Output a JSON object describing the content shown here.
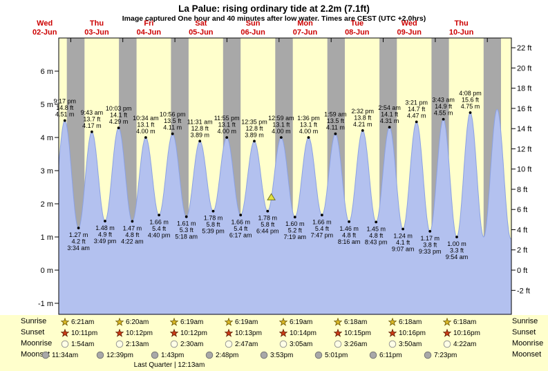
{
  "header": {
    "title": "La Palue: rising  ordinary tide at 2.2m (7.1ft)",
    "subtitle": "Image captured One hour and 40 minutes after low water. Times are CEST (UTC +2.0hrs)"
  },
  "colors": {
    "plot_bg": "#ffffcc",
    "night_band": "#a8a8a8",
    "tide_fill": "#b3c1ef",
    "tide_stroke": "#8ba1e3",
    "day_label_red": "#cc0000",
    "axis_text": "#000000",
    "sunrise_star": "#d9b826",
    "sunrise_star_stroke": "#6b5500",
    "sunset_star": "#cc3b16",
    "sunset_star_stroke": "#5e1a00",
    "moonrise_fill": "#ffffe6",
    "moonrise_stroke": "#8a8a8a",
    "moonset_fill": "#a8a8a8",
    "moonset_stroke": "#6e6e6e",
    "marker_fill": "#e3e23c",
    "marker_stroke": "#6f6f28"
  },
  "chart_data": {
    "type": "area",
    "title": "La Palue: rising ordinary tide at 2.2m (7.1ft)",
    "x_unit": "hours since 02-Jun 00:00 (CEST)",
    "x_range_hours": [
      18.5,
      227
    ],
    "y_range_m": [
      -1.33,
      7.0
    ],
    "grid": false,
    "x_days": [
      {
        "dow": "Wed",
        "date": "02-Jun"
      },
      {
        "dow": "Thu",
        "date": "03-Jun"
      },
      {
        "dow": "Fri",
        "date": "04-Jun"
      },
      {
        "dow": "Sat",
        "date": "05-Jun"
      },
      {
        "dow": "Sun",
        "date": "06-Jun"
      },
      {
        "dow": "Mon",
        "date": "07-Jun"
      },
      {
        "dow": "Tue",
        "date": "08-Jun"
      },
      {
        "dow": "Wed",
        "date": "09-Jun"
      },
      {
        "dow": "Thu",
        "date": "10-Jun"
      }
    ],
    "y_left": [
      {
        "value": 6,
        "label": "6 m"
      },
      {
        "value": 5,
        "label": "5 m"
      },
      {
        "value": 4,
        "label": "4 m"
      },
      {
        "value": 3,
        "label": "3 m"
      },
      {
        "value": 2,
        "label": "2 m"
      },
      {
        "value": 1,
        "label": "1 m"
      },
      {
        "value": 0,
        "label": "0 m"
      },
      {
        "value": -1,
        "label": "-1 m"
      }
    ],
    "y_right": [
      {
        "value": 22,
        "label": "22 ft"
      },
      {
        "value": 20,
        "label": "20 ft"
      },
      {
        "value": 18,
        "label": "18 ft"
      },
      {
        "value": 16,
        "label": "16 ft"
      },
      {
        "value": 14,
        "label": "14 ft"
      },
      {
        "value": 12,
        "label": "12 ft"
      },
      {
        "value": 10,
        "label": "10 ft"
      },
      {
        "value": 8,
        "label": "8 ft"
      },
      {
        "value": 6,
        "label": "6 ft"
      },
      {
        "value": 4,
        "label": "4 ft"
      },
      {
        "value": 2,
        "label": "2 ft"
      },
      {
        "value": 0,
        "label": "0 ft"
      },
      {
        "value": -2,
        "label": "-2 ft"
      }
    ],
    "day_tick_hours": [
      24,
      48,
      72,
      96,
      120,
      144,
      168,
      192,
      216
    ],
    "night_bands_hours": [
      [
        22.183,
        30.35
      ],
      [
        46.2,
        54.333
      ],
      [
        70.2,
        78.317
      ],
      [
        94.217,
        102.317
      ],
      [
        118.233,
        126.317
      ],
      [
        142.25,
        150.3
      ],
      [
        166.267,
        174.3
      ],
      [
        190.267,
        198.3
      ],
      [
        214.267,
        222.3
      ]
    ],
    "tide_events": [
      {
        "t": 21.283,
        "m": 4.51,
        "kind": "high",
        "labels": [
          "9:17 pm",
          "14.8 ft",
          "4.51 m"
        ]
      },
      {
        "t": 27.567,
        "m": 1.27,
        "kind": "low",
        "labels": [
          "1.27 m",
          "4.2 ft",
          "3:34 am"
        ]
      },
      {
        "t": 33.717,
        "m": 4.17,
        "kind": "high",
        "labels": [
          "9:43 am",
          "13.7 ft",
          "4.17 m"
        ]
      },
      {
        "t": 39.817,
        "m": 1.48,
        "kind": "low",
        "labels": [
          "1.48 m",
          "4.9 ft",
          "3:49 pm"
        ]
      },
      {
        "t": 46.05,
        "m": 4.29,
        "kind": "high",
        "labels": [
          "10:03 pm",
          "14.1 ft",
          "4.29 m"
        ]
      },
      {
        "t": 52.367,
        "m": 1.47,
        "kind": "low",
        "labels": [
          "1.47 m",
          "4.8 ft",
          "4:22 am"
        ]
      },
      {
        "t": 58.567,
        "m": 4.0,
        "kind": "high",
        "labels": [
          "10:34 am",
          "13.1 ft",
          "4.00 m"
        ]
      },
      {
        "t": 64.667,
        "m": 1.66,
        "kind": "low",
        "labels": [
          "1.66 m",
          "5.4 ft",
          "4:40 pm"
        ]
      },
      {
        "t": 70.933,
        "m": 4.11,
        "kind": "high",
        "labels": [
          "10:56 pm",
          "13.5 ft",
          "4.11 m"
        ]
      },
      {
        "t": 77.3,
        "m": 1.61,
        "kind": "low",
        "labels": [
          "1.61 m",
          "5.3 ft",
          "5:18 am"
        ]
      },
      {
        "t": 83.517,
        "m": 3.89,
        "kind": "high",
        "labels": [
          "11:31 am",
          "12.8 ft",
          "3.89 m"
        ]
      },
      {
        "t": 89.65,
        "m": 1.78,
        "kind": "low",
        "labels": [
          "1.78 m",
          "5.8 ft",
          "5:39 pm"
        ]
      },
      {
        "t": 95.917,
        "m": 4.0,
        "kind": "high",
        "labels": [
          "11:55 pm",
          "13.1 ft",
          "4.00 m"
        ]
      },
      {
        "t": 102.283,
        "m": 1.66,
        "kind": "low",
        "labels": [
          "1.66 m",
          "5.4 ft",
          "6:17 am"
        ]
      },
      {
        "t": 108.583,
        "m": 3.89,
        "kind": "high",
        "labels": [
          "12:35 pm",
          "12.8 ft",
          "3.89 m"
        ]
      },
      {
        "t": 114.733,
        "m": 1.78,
        "kind": "low",
        "labels": [
          "1.78 m",
          "5.8 ft",
          "6:44 pm"
        ]
      },
      {
        "t": 120.983,
        "m": 4.0,
        "kind": "high",
        "labels": [
          "12:59 am",
          "13.1 ft",
          "4.00 m"
        ]
      },
      {
        "t": 127.317,
        "m": 1.6,
        "kind": "low",
        "labels": [
          "1.60 m",
          "5.2 ft",
          "7:19 am"
        ]
      },
      {
        "t": 133.6,
        "m": 4.0,
        "kind": "high",
        "labels": [
          "1:36 pm",
          "13.1 ft",
          "4.00 m"
        ]
      },
      {
        "t": 139.783,
        "m": 1.66,
        "kind": "low",
        "labels": [
          "1.66 m",
          "5.4 ft",
          "7:47 pm"
        ]
      },
      {
        "t": 145.983,
        "m": 4.11,
        "kind": "high",
        "labels": [
          "1:59 am",
          "13.5 ft",
          "4.11 m"
        ]
      },
      {
        "t": 152.267,
        "m": 1.46,
        "kind": "low",
        "labels": [
          "1.46 m",
          "4.8 ft",
          "8:16 am"
        ]
      },
      {
        "t": 158.533,
        "m": 4.21,
        "kind": "high",
        "labels": [
          "2:32 pm",
          "13.8 ft",
          "4.21 m"
        ]
      },
      {
        "t": 164.717,
        "m": 1.45,
        "kind": "low",
        "labels": [
          "1.45 m",
          "4.8 ft",
          "8:43 pm"
        ]
      },
      {
        "t": 170.9,
        "m": 4.31,
        "kind": "high",
        "labels": [
          "2:54 am",
          "14.1 ft",
          "4.31 m"
        ]
      },
      {
        "t": 177.117,
        "m": 1.24,
        "kind": "low",
        "labels": [
          "1.24 m",
          "4.1 ft",
          "9:07 am"
        ]
      },
      {
        "t": 183.35,
        "m": 4.47,
        "kind": "high",
        "labels": [
          "3:21 pm",
          "14.7 ft",
          "4.47 m"
        ]
      },
      {
        "t": 189.55,
        "m": 1.17,
        "kind": "low",
        "labels": [
          "1.17 m",
          "3.8 ft",
          "9:33 pm"
        ]
      },
      {
        "t": 195.717,
        "m": 4.55,
        "kind": "high",
        "labels": [
          "3:43 am",
          "14.9 ft",
          "4.55 m"
        ]
      },
      {
        "t": 201.9,
        "m": 1.0,
        "kind": "low",
        "labels": [
          "1.00 m",
          "3.3 ft",
          "9:54 am"
        ]
      },
      {
        "t": 208.133,
        "m": 4.75,
        "kind": "high",
        "labels": [
          "4:08 pm",
          "15.6 ft",
          "4.75 m"
        ]
      }
    ],
    "synthetic_extremes": [
      [
        15.2,
        1.4
      ],
      [
        214.3,
        1.0
      ],
      [
        220.5,
        4.85
      ],
      [
        226.8,
        0.95
      ]
    ],
    "current_marker": {
      "t": 116.42,
      "m": 2.2
    }
  },
  "almanac": {
    "rows": [
      {
        "key": "sunrise",
        "label": "Sunrise",
        "times": [
          "6:21am",
          "6:20am",
          "6:19am",
          "6:19am",
          "6:19am",
          "6:18am",
          "6:18am",
          "6:18am"
        ]
      },
      {
        "key": "sunset",
        "label": "Sunset",
        "times": [
          "10:11pm",
          "10:12pm",
          "10:12pm",
          "10:13pm",
          "10:14pm",
          "10:15pm",
          "10:16pm",
          "10:16pm"
        ]
      },
      {
        "key": "moonrise",
        "label": "Moonrise",
        "times": [
          "1:54am",
          "2:13am",
          "2:30am",
          "2:47am",
          "3:05am",
          "3:26am",
          "3:50am",
          "4:22am"
        ]
      },
      {
        "key": "moonset",
        "label": "Moonset",
        "times": [
          "11:34am",
          "12:39pm",
          "1:43pm",
          "2:48pm",
          "3:53pm",
          "5:01pm",
          "6:11pm",
          "7:23pm"
        ]
      }
    ],
    "footer": "Last Quarter | 12:13am"
  }
}
